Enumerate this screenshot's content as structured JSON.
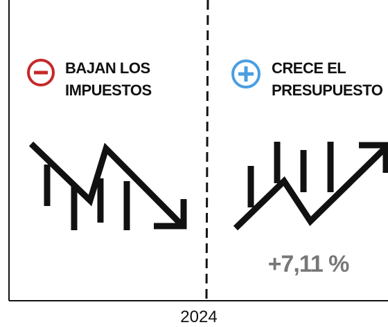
{
  "left_panel": {
    "title_lines": [
      "BAJAN LOS",
      "IMPUESTOS"
    ]
  },
  "right_panel": {
    "title_lines": [
      "CRECE EL",
      "PRESUPUESTO"
    ],
    "stat": "+7,11 %"
  },
  "axis_label": "2024"
}
